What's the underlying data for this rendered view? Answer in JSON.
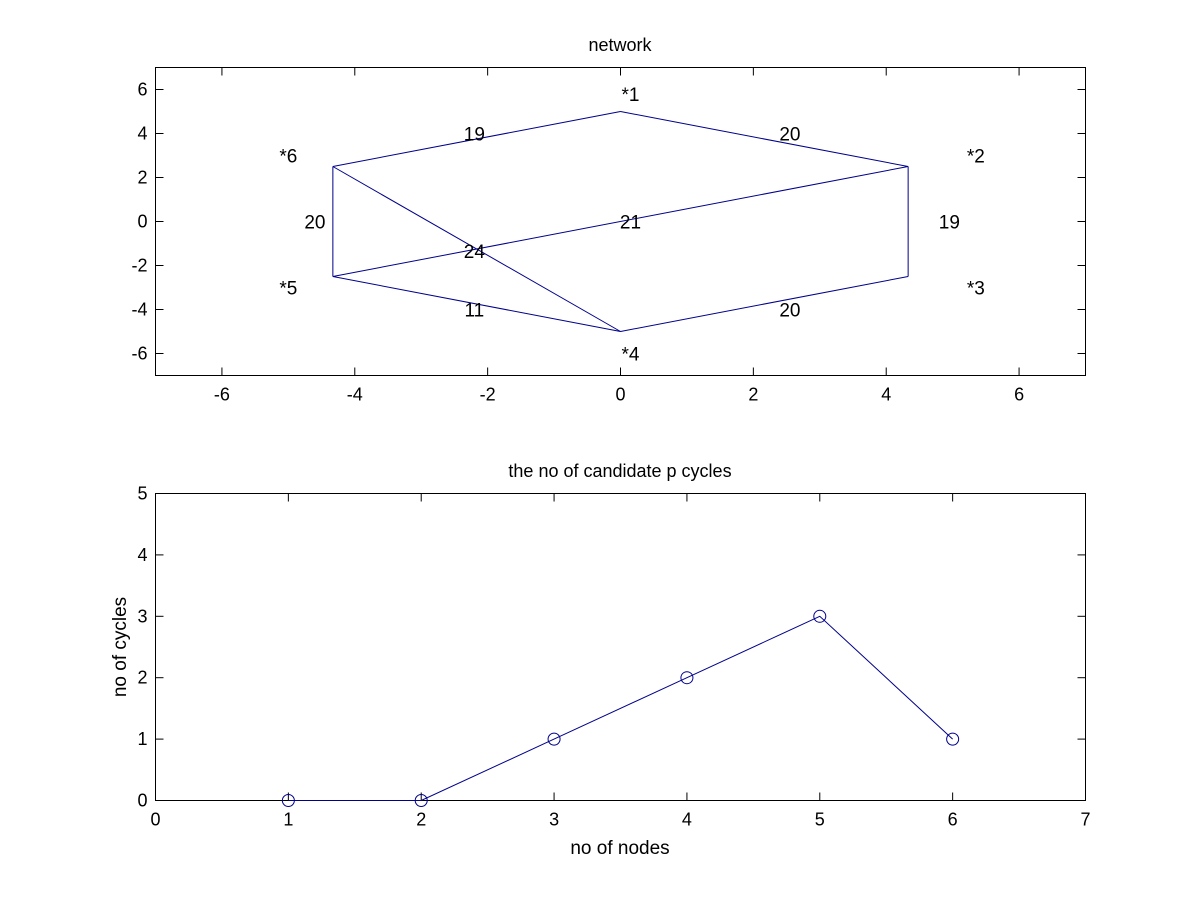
{
  "colors": {
    "series": "#00008b",
    "axes": "#000000",
    "background": "#ffffff"
  },
  "chart_data": [
    {
      "type": "network",
      "title": "network",
      "xlabel": "",
      "ylabel": "",
      "xlim": [
        -7,
        7
      ],
      "ylim": [
        -7,
        7
      ],
      "xticks": [
        -6,
        -4,
        -2,
        0,
        2,
        4,
        6
      ],
      "yticks": [
        -6,
        -4,
        -2,
        0,
        2,
        4,
        6
      ],
      "grid": false,
      "nodes": [
        {
          "id": 1,
          "label": "*1",
          "x": 0,
          "y": 5,
          "label_x": 0.15,
          "label_y": 5.8
        },
        {
          "id": 2,
          "label": "*2",
          "x": 4.33,
          "y": 2.5,
          "label_x": 5.35,
          "label_y": 3.0
        },
        {
          "id": 3,
          "label": "*3",
          "x": 4.33,
          "y": -2.5,
          "label_x": 5.35,
          "label_y": -3.0
        },
        {
          "id": 4,
          "label": "*4",
          "x": 0,
          "y": -5,
          "label_x": 0.15,
          "label_y": -6.0
        },
        {
          "id": 5,
          "label": "*5",
          "x": -4.33,
          "y": -2.5,
          "label_x": -5.0,
          "label_y": -3.0
        },
        {
          "id": 6,
          "label": "*6",
          "x": -4.33,
          "y": 2.5,
          "label_x": -5.0,
          "label_y": 3.0
        }
      ],
      "edges": [
        {
          "from": 6,
          "to": 1,
          "weight": "19",
          "label_x": -2.2,
          "label_y": 4.0
        },
        {
          "from": 1,
          "to": 2,
          "weight": "20",
          "label_x": 2.55,
          "label_y": 4.0
        },
        {
          "from": 2,
          "to": 3,
          "weight": "19",
          "label_x": 4.95,
          "label_y": 0.0
        },
        {
          "from": 3,
          "to": 4,
          "weight": "20",
          "label_x": 2.55,
          "label_y": -4.0
        },
        {
          "from": 4,
          "to": 5,
          "weight": "11",
          "label_x": -2.2,
          "label_y": -4.0
        },
        {
          "from": 5,
          "to": 6,
          "weight": "20",
          "label_x": -4.6,
          "label_y": 0.0
        },
        {
          "from": 5,
          "to": 2,
          "weight": "21",
          "label_x": 0.15,
          "label_y": 0.0
        },
        {
          "from": 6,
          "to": 4,
          "weight": "24",
          "label_x": -2.2,
          "label_y": -1.35
        }
      ]
    },
    {
      "type": "line",
      "title": "the no of candidate p cycles",
      "xlabel": "no of nodes",
      "ylabel": "no of cycles",
      "xlim": [
        0,
        7
      ],
      "ylim": [
        0,
        5
      ],
      "xticks": [
        0,
        1,
        2,
        3,
        4,
        5,
        6,
        7
      ],
      "yticks": [
        0,
        1,
        2,
        3,
        4,
        5
      ],
      "grid": false,
      "marker": "circle",
      "series": [
        {
          "x": [
            1,
            2,
            3,
            4,
            5,
            6
          ],
          "values": [
            0,
            0,
            1,
            2,
            3,
            1
          ]
        }
      ]
    }
  ]
}
